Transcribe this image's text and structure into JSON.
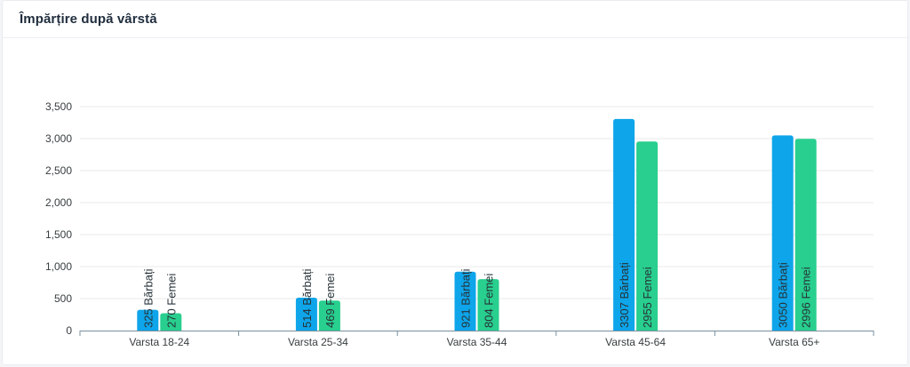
{
  "title": "Împărțire după vârstă",
  "colors": {
    "barbati": "#0ea5ea",
    "femei": "#28cf8e",
    "grid": "#e8e8e8",
    "axis": "#78909c"
  },
  "chart_data": {
    "type": "bar",
    "title": "Împărțire după vârstă",
    "categories": [
      "Varsta 18-24",
      "Varsta 25-34",
      "Varsta 35-44",
      "Varsta 45-64",
      "Varsta 65+"
    ],
    "series": [
      {
        "values": [
          325,
          514,
          921,
          3307,
          3050
        ],
        "labels": [
          "325 Bărbați",
          "514 Bărbați",
          "921 Bărbați",
          "3307 Bărbați",
          "3050 Bărbați"
        ]
      },
      {
        "values": [
          270,
          469,
          804,
          2955,
          2996
        ],
        "labels": [
          "270 Femei",
          "469 Femei",
          "804 Femei",
          "2955 Femei",
          "2996 Femei"
        ]
      }
    ],
    "yticks": [
      "0",
      "500",
      "1,000",
      "1,500",
      "2,000",
      "2,500",
      "3,000",
      "3,500"
    ],
    "ylim": [
      0,
      3500
    ],
    "xlabel": "",
    "ylabel": "",
    "grid": true,
    "legend": "none"
  }
}
